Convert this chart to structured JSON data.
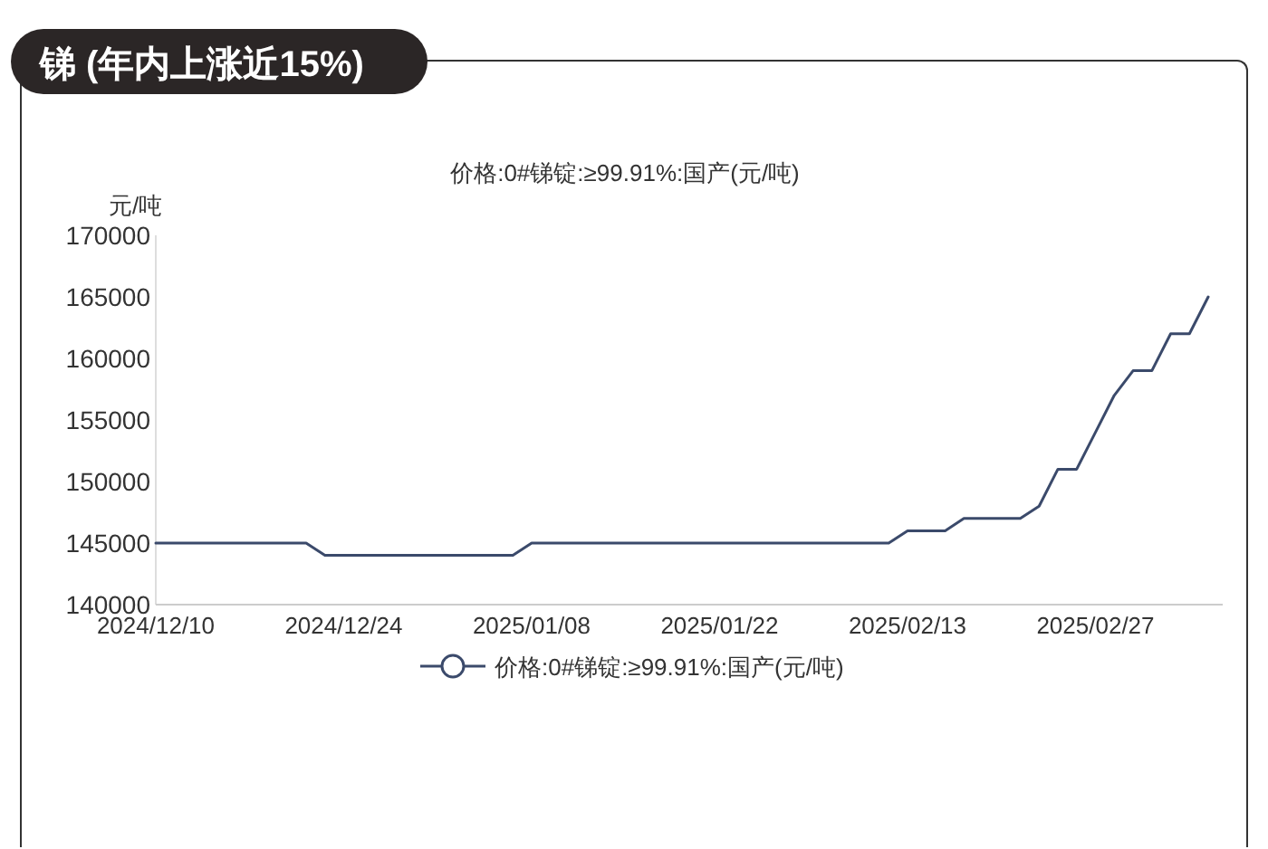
{
  "chart_data": {
    "type": "line",
    "title": "锑 (年内上涨近15%)",
    "subtitle": "价格:0#锑锭:≥99.91%:国产(元/吨)",
    "ylabel": "元/吨",
    "categories": [
      "2024/12/10",
      null,
      null,
      null,
      null,
      null,
      null,
      null,
      null,
      null,
      "2024/12/24",
      null,
      null,
      null,
      null,
      null,
      null,
      null,
      null,
      null,
      "2025/01/08",
      null,
      null,
      null,
      null,
      null,
      null,
      null,
      null,
      null,
      "2025/01/22",
      null,
      null,
      null,
      null,
      null,
      null,
      null,
      null,
      null,
      "2025/02/13",
      null,
      null,
      null,
      null,
      null,
      null,
      null,
      null,
      null,
      "2025/02/27",
      null,
      null,
      null,
      null,
      null,
      null
    ],
    "series": [
      {
        "name": "价格:0#锑锭:≥99.91%:国产(元/吨)",
        "color": "#3b4a6b",
        "values": [
          145000,
          145000,
          145000,
          145000,
          145000,
          145000,
          145000,
          145000,
          145000,
          144000,
          144000,
          144000,
          144000,
          144000,
          144000,
          144000,
          144000,
          144000,
          144000,
          144000,
          145000,
          145000,
          145000,
          145000,
          145000,
          145000,
          145000,
          145000,
          145000,
          145000,
          145000,
          145000,
          145000,
          145000,
          145000,
          145000,
          145000,
          145000,
          145000,
          145000,
          146000,
          146000,
          146000,
          147000,
          147000,
          147000,
          147000,
          148000,
          151000,
          151000,
          154000,
          157000,
          159000,
          159000,
          162000,
          162000,
          165000
        ]
      }
    ],
    "ylim": [
      140000,
      170000
    ],
    "yticks": [
      140000,
      145000,
      150000,
      155000,
      160000,
      165000,
      170000
    ],
    "legend": "bottom",
    "marker": "none",
    "line_style": "solid",
    "grid": false
  }
}
